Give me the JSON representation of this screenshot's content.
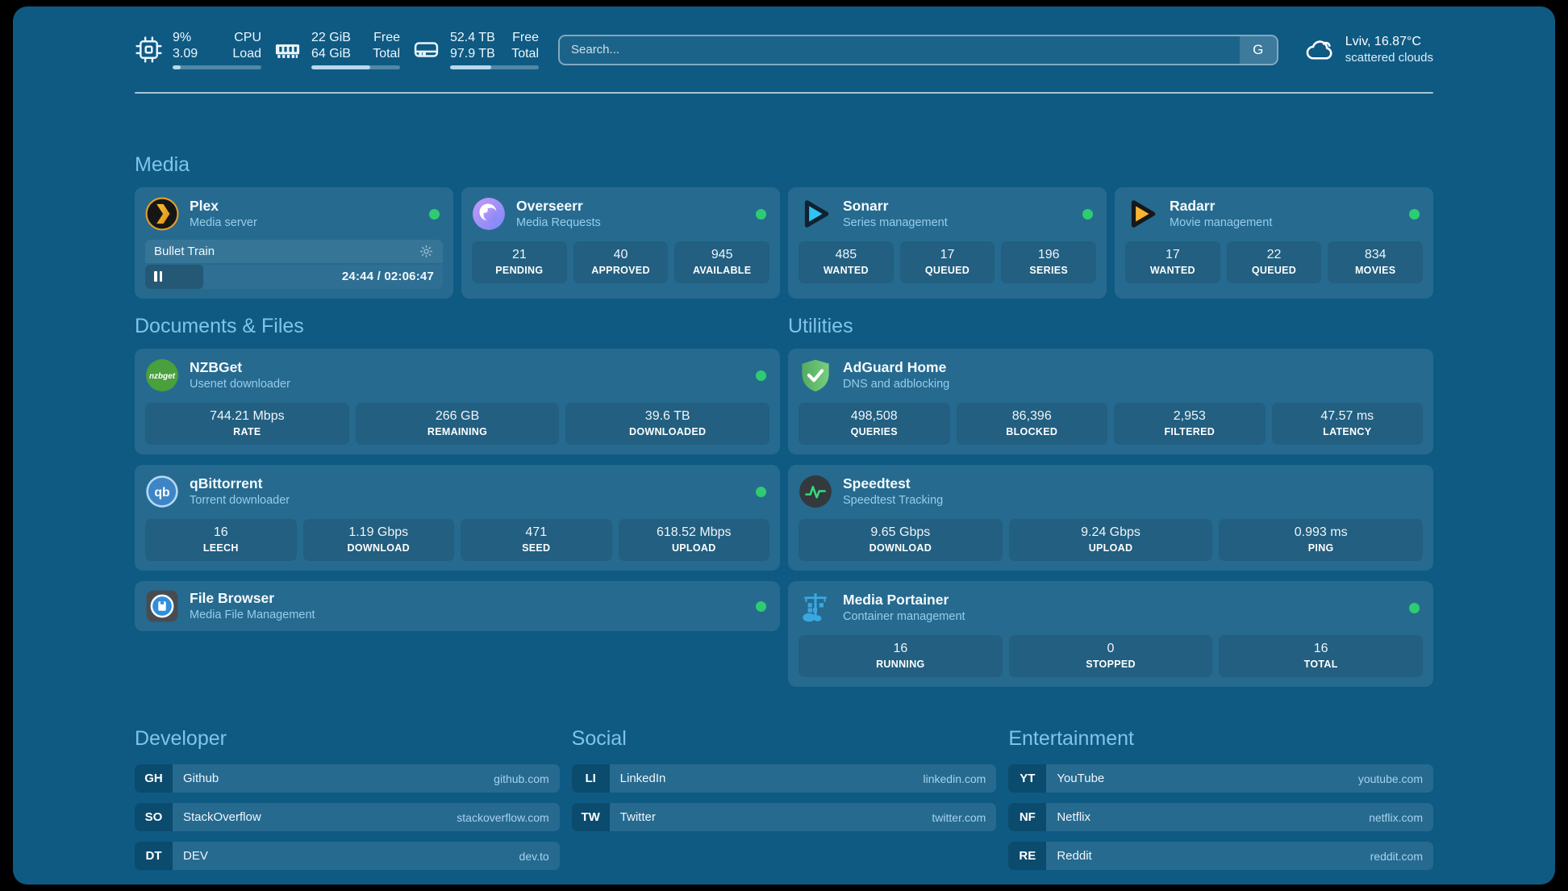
{
  "theme": {
    "background": "#0e5a83",
    "accent_text": "#82c3e9",
    "status_online": "#2ecc71",
    "progress_fill": "#b9d8ec"
  },
  "topbar": {
    "stats": [
      {
        "icon": "cpu-icon",
        "v1": "9%",
        "l1": "CPU",
        "v2": "3.09",
        "l2": "Load",
        "progress": 9
      },
      {
        "icon": "ram-icon",
        "v1": "22 GiB",
        "l1": "Free",
        "v2": "64 GiB",
        "l2": "Total",
        "progress": 66
      },
      {
        "icon": "disk-icon",
        "v1": "52.4 TB",
        "l1": "Free",
        "v2": "97.9 TB",
        "l2": "Total",
        "progress": 46
      }
    ],
    "search": {
      "placeholder": "Search...",
      "button_label": "G"
    },
    "weather": {
      "location": "Lviv, 16.87°C",
      "condition": "scattered clouds"
    }
  },
  "media": {
    "title": "Media",
    "plex": {
      "name": "Plex",
      "desc": "Media server",
      "status": "online",
      "now_playing": {
        "title": "Bullet Train",
        "time": "24:44 / 02:06:47",
        "progress_pct": 19.5
      }
    },
    "overseerr": {
      "name": "Overseerr",
      "desc": "Media Requests",
      "status": "online",
      "stats": [
        {
          "value": "21",
          "label": "PENDING"
        },
        {
          "value": "40",
          "label": "APPROVED"
        },
        {
          "value": "945",
          "label": "AVAILABLE"
        }
      ]
    },
    "sonarr": {
      "name": "Sonarr",
      "desc": "Series management",
      "status": "online",
      "stats": [
        {
          "value": "485",
          "label": "WANTED"
        },
        {
          "value": "17",
          "label": "QUEUED"
        },
        {
          "value": "196",
          "label": "SERIES"
        }
      ]
    },
    "radarr": {
      "name": "Radarr",
      "desc": "Movie management",
      "status": "online",
      "stats": [
        {
          "value": "17",
          "label": "WANTED"
        },
        {
          "value": "22",
          "label": "QUEUED"
        },
        {
          "value": "834",
          "label": "MOVIES"
        }
      ]
    }
  },
  "documents": {
    "title": "Documents & Files",
    "nzbget": {
      "name": "NZBGet",
      "desc": "Usenet downloader",
      "status": "online",
      "stats": [
        {
          "value": "744.21 Mbps",
          "label": "RATE"
        },
        {
          "value": "266 GB",
          "label": "REMAINING"
        },
        {
          "value": "39.6 TB",
          "label": "DOWNLOADED"
        }
      ]
    },
    "qbittorrent": {
      "name": "qBittorrent",
      "desc": "Torrent downloader",
      "status": "online",
      "stats": [
        {
          "value": "16",
          "label": "LEECH"
        },
        {
          "value": "1.19 Gbps",
          "label": "DOWNLOAD"
        },
        {
          "value": "471",
          "label": "SEED"
        },
        {
          "value": "618.52 Mbps",
          "label": "UPLOAD"
        }
      ]
    },
    "filebrowser": {
      "name": "File Browser",
      "desc": "Media File Management",
      "status": "online"
    }
  },
  "utilities": {
    "title": "Utilities",
    "adguard": {
      "name": "AdGuard Home",
      "desc": "DNS and adblocking",
      "stats": [
        {
          "value": "498,508",
          "label": "QUERIES"
        },
        {
          "value": "86,396",
          "label": "BLOCKED"
        },
        {
          "value": "2,953",
          "label": "FILTERED"
        },
        {
          "value": "47.57 ms",
          "label": "LATENCY"
        }
      ]
    },
    "speedtest": {
      "name": "Speedtest",
      "desc": "Speedtest Tracking",
      "stats": [
        {
          "value": "9.65 Gbps",
          "label": "DOWNLOAD"
        },
        {
          "value": "9.24 Gbps",
          "label": "UPLOAD"
        },
        {
          "value": "0.993 ms",
          "label": "PING"
        }
      ]
    },
    "portainer": {
      "name": "Media Portainer",
      "desc": "Container management",
      "status": "online",
      "stats": [
        {
          "value": "16",
          "label": "RUNNING"
        },
        {
          "value": "0",
          "label": "STOPPED"
        },
        {
          "value": "16",
          "label": "TOTAL"
        }
      ]
    }
  },
  "bookmarks": [
    {
      "title": "Developer",
      "links": [
        {
          "abbr": "GH",
          "name": "Github",
          "url": "github.com"
        },
        {
          "abbr": "SO",
          "name": "StackOverflow",
          "url": "stackoverflow.com"
        },
        {
          "abbr": "DT",
          "name": "DEV",
          "url": "dev.to"
        }
      ]
    },
    {
      "title": "Social",
      "links": [
        {
          "abbr": "LI",
          "name": "LinkedIn",
          "url": "linkedin.com"
        },
        {
          "abbr": "TW",
          "name": "Twitter",
          "url": "twitter.com"
        }
      ]
    },
    {
      "title": "Entertainment",
      "links": [
        {
          "abbr": "YT",
          "name": "YouTube",
          "url": "youtube.com"
        },
        {
          "abbr": "NF",
          "name": "Netflix",
          "url": "netflix.com"
        },
        {
          "abbr": "RE",
          "name": "Reddit",
          "url": "reddit.com"
        }
      ]
    }
  ]
}
